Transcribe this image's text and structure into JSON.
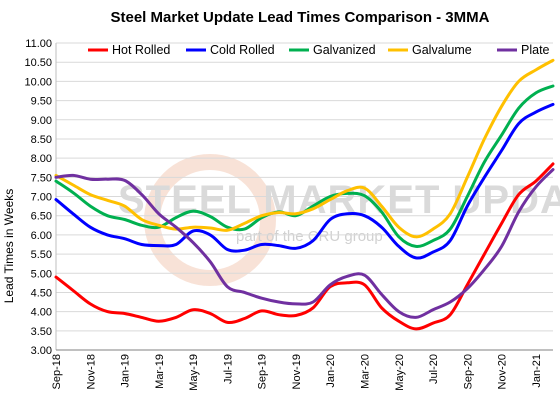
{
  "watermark": {
    "brand": "STEEL MARKET UPDATE",
    "tagline": "part of the CRU group"
  },
  "chart_data": {
    "type": "line",
    "title": "Steel Market Update Lead Times Comparison - 3MMA",
    "xlabel": "",
    "ylabel": "Lead Times in Weeks",
    "ylim": [
      3.0,
      11.0
    ],
    "yticks": [
      "3.00",
      "3.50",
      "4.00",
      "4.50",
      "5.00",
      "5.50",
      "6.00",
      "6.50",
      "7.00",
      "7.50",
      "8.00",
      "8.50",
      "9.00",
      "9.50",
      "10.00",
      "10.50",
      "11.00"
    ],
    "xtick_labels": [
      "Sep-18",
      "Nov-18",
      "Jan-19",
      "Mar-19",
      "May-19",
      "Jul-19",
      "Sep-19",
      "Nov-19",
      "Jan-20",
      "Mar-20",
      "May-20",
      "Jul-20",
      "Sep-20",
      "Nov-20",
      "Jan-21"
    ],
    "x_start": "Sep-18",
    "x_end": "Mar-21",
    "legend_position": "top",
    "grid": true,
    "series": [
      {
        "name": "Hot Rolled",
        "color": "#ff0000",
        "values": [
          4.9,
          4.55,
          4.2,
          4.0,
          3.95,
          3.85,
          3.75,
          3.85,
          4.05,
          3.95,
          3.72,
          3.82,
          4.02,
          3.92,
          3.9,
          4.1,
          4.65,
          4.75,
          4.7,
          4.1,
          3.75,
          3.55,
          3.7,
          3.92,
          4.7,
          5.5,
          6.3,
          7.05,
          7.4,
          7.85
        ]
      },
      {
        "name": "Cold Rolled",
        "color": "#0000ff",
        "values": [
          6.92,
          6.55,
          6.2,
          6.0,
          5.9,
          5.75,
          5.72,
          5.75,
          6.1,
          6.0,
          5.62,
          5.6,
          5.75,
          5.72,
          5.65,
          5.85,
          6.4,
          6.55,
          6.5,
          6.2,
          5.7,
          5.4,
          5.55,
          5.85,
          6.75,
          7.5,
          8.2,
          8.9,
          9.2,
          9.4
        ]
      },
      {
        "name": "Galvanized",
        "color": "#00b050",
        "values": [
          7.4,
          7.1,
          6.75,
          6.5,
          6.4,
          6.25,
          6.2,
          6.45,
          6.62,
          6.48,
          6.2,
          6.15,
          6.45,
          6.6,
          6.5,
          6.75,
          7.0,
          7.08,
          7.02,
          6.6,
          5.95,
          5.7,
          5.85,
          6.15,
          7.0,
          7.9,
          8.6,
          9.3,
          9.7,
          9.88
        ]
      },
      {
        "name": "Galvalume",
        "color": "#ffc000",
        "values": [
          7.55,
          7.3,
          7.05,
          6.9,
          6.75,
          6.4,
          6.25,
          6.15,
          6.2,
          6.18,
          6.12,
          6.3,
          6.5,
          6.58,
          6.55,
          6.68,
          6.92,
          7.15,
          7.22,
          6.75,
          6.2,
          5.95,
          6.15,
          6.55,
          7.5,
          8.5,
          9.35,
          10.0,
          10.3,
          10.55
        ]
      },
      {
        "name": "Plate",
        "color": "#7030a0",
        "values": [
          7.5,
          7.55,
          7.45,
          7.45,
          7.42,
          7.05,
          6.55,
          6.2,
          5.8,
          5.3,
          4.65,
          4.5,
          4.35,
          4.25,
          4.2,
          4.25,
          4.7,
          4.92,
          4.95,
          4.45,
          4.0,
          3.85,
          4.05,
          4.25,
          4.6,
          5.1,
          5.7,
          6.6,
          7.25,
          7.7
        ]
      }
    ]
  }
}
